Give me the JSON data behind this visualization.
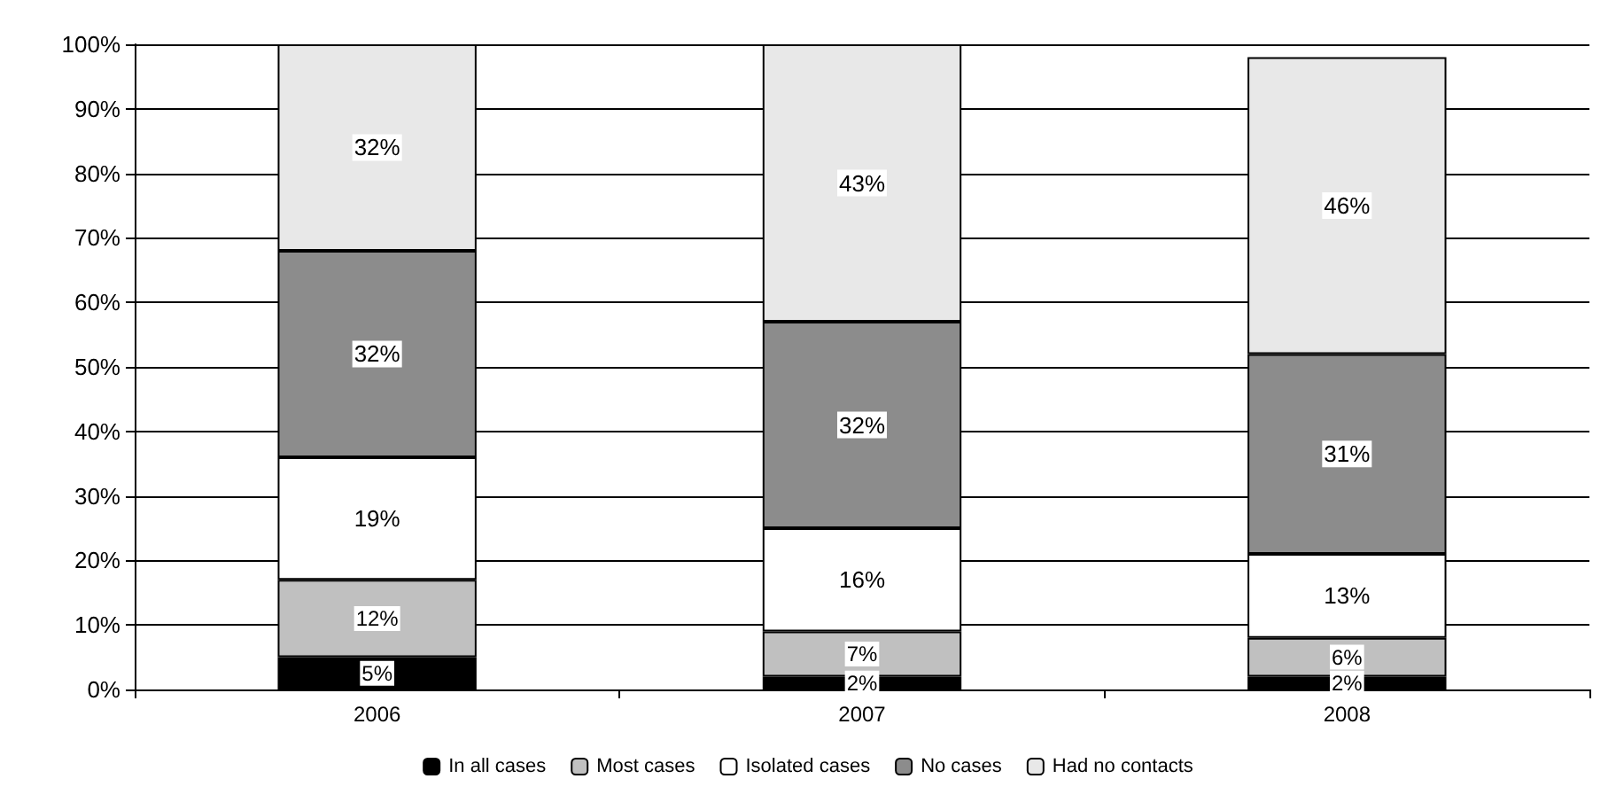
{
  "chart_data": {
    "type": "bar",
    "stacked": true,
    "categories": [
      "2006",
      "2007",
      "2008"
    ],
    "series": [
      {
        "name": "In all cases",
        "color": "#000000",
        "values": [
          5,
          2,
          2
        ],
        "value_labels": [
          "5%",
          "2%",
          "2%"
        ]
      },
      {
        "name": "Most cases",
        "color": "#c0c0c0",
        "values": [
          12,
          7,
          6
        ],
        "value_labels": [
          "12%",
          "7%",
          "6%"
        ]
      },
      {
        "name": "Isolated cases",
        "color": "#ffffff",
        "values": [
          19,
          16,
          13
        ],
        "value_labels": [
          "19%",
          "16%",
          "13%"
        ]
      },
      {
        "name": "No cases",
        "color": "#8c8c8c",
        "values": [
          32,
          32,
          31
        ],
        "value_labels": [
          "32%",
          "32%",
          "31%"
        ]
      },
      {
        "name": "Had no contacts",
        "color": "#e8e8e8",
        "values": [
          32,
          43,
          46
        ],
        "value_labels": [
          "32%",
          "43%",
          "46%"
        ]
      }
    ],
    "ylim": [
      0,
      100
    ],
    "yticks": [
      {
        "value": 0,
        "label": "0%"
      },
      {
        "value": 10,
        "label": "10%"
      },
      {
        "value": 20,
        "label": "20%"
      },
      {
        "value": 30,
        "label": "30%"
      },
      {
        "value": 40,
        "label": "40%"
      },
      {
        "value": 50,
        "label": "50%"
      },
      {
        "value": 60,
        "label": "60%"
      },
      {
        "value": 70,
        "label": "70%"
      },
      {
        "value": 80,
        "label": "80%"
      },
      {
        "value": 90,
        "label": "90%"
      },
      {
        "value": 100,
        "label": "100%"
      }
    ],
    "grid": "y",
    "legend": "bottom"
  }
}
